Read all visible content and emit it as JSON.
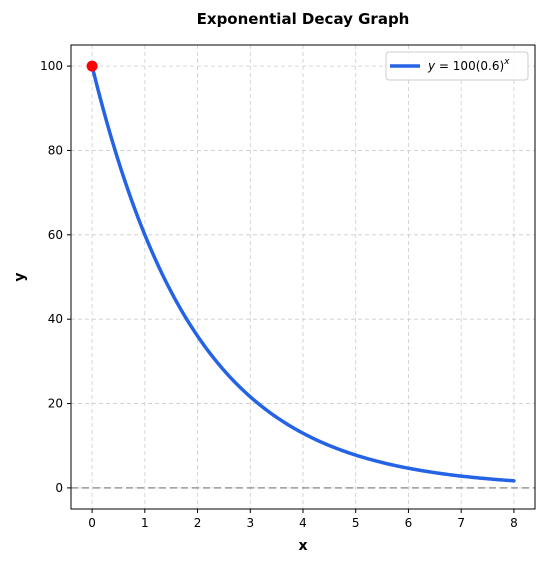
{
  "chart_data": {
    "type": "line",
    "title": "Exponential Decay Graph",
    "xlabel": "x",
    "ylabel": "y",
    "xlim": [
      -0.4,
      8.4
    ],
    "ylim": [
      -5,
      105
    ],
    "xticks": [
      0,
      1,
      2,
      3,
      4,
      5,
      6,
      7,
      8
    ],
    "yticks": [
      0,
      20,
      40,
      60,
      80,
      100
    ],
    "grid": true,
    "legend_position": "top-right",
    "series": [
      {
        "name": "y = 100(0.6)^x",
        "color": "#2563e6",
        "function": {
          "a": 100,
          "b": 0.6
        },
        "x": [
          0,
          0.5,
          1,
          1.5,
          2,
          2.5,
          3,
          3.5,
          4,
          4.5,
          5,
          5.5,
          6,
          6.5,
          7,
          7.5,
          8
        ],
        "y": [
          100,
          77.46,
          60,
          46.48,
          36,
          27.89,
          21.6,
          16.73,
          12.96,
          10.04,
          7.78,
          6.02,
          4.67,
          3.61,
          2.8,
          2.17,
          1.68
        ]
      }
    ],
    "highlight_point": {
      "x": 0,
      "y": 100,
      "color": "#ff0000"
    },
    "reference_line": {
      "y": 0,
      "color": "#999999",
      "style": "dashed"
    }
  },
  "legend": {
    "eq_prefix": "y",
    "eq_body": " = 100(0.6)",
    "eq_exp": "x"
  }
}
